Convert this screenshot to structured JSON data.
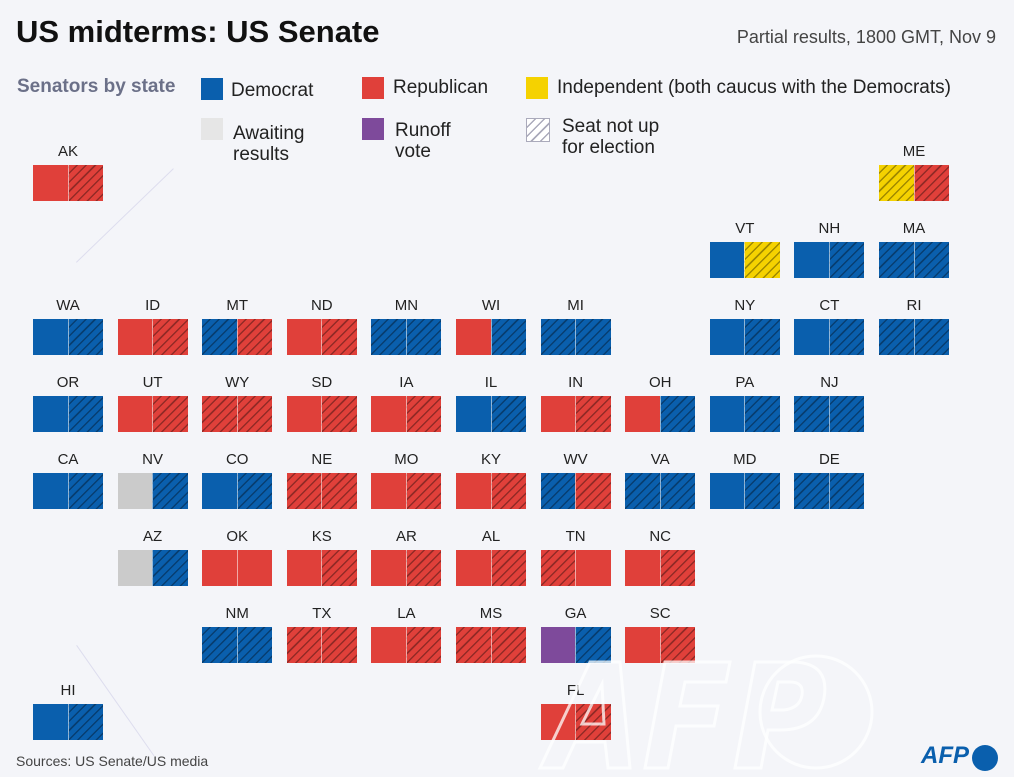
{
  "title": "US midterms: US Senate",
  "subtitle": "Partial results, 1800 GMT, Nov 9",
  "legend": {
    "heading": "Senators by state",
    "democrat": "Democrat",
    "republican": "Republican",
    "independent": "Independent (both caucus with the Democrats)",
    "awaiting": "Awaiting results",
    "runoff": "Runoff vote",
    "not_up": "Seat not up for election"
  },
  "colors": {
    "D": "#0a5fad",
    "R": "#e0403a",
    "I": "#f5d200",
    "A": "#cbcbcb",
    "U": "#7e4a9b"
  },
  "seat_codes_note": "h = seat not up for election",
  "states": [
    {
      "abbr": "AK",
      "seats": [
        "R",
        "Rh"
      ]
    },
    {
      "abbr": "ME",
      "seats": [
        "Ih",
        "Rh"
      ]
    },
    {
      "abbr": "VT",
      "seats": [
        "D",
        "Ih"
      ]
    },
    {
      "abbr": "NH",
      "seats": [
        "D",
        "Dh"
      ]
    },
    {
      "abbr": "MA",
      "seats": [
        "Dh",
        "Dh"
      ]
    },
    {
      "abbr": "WA",
      "seats": [
        "D",
        "Dh"
      ]
    },
    {
      "abbr": "ID",
      "seats": [
        "R",
        "Rh"
      ]
    },
    {
      "abbr": "MT",
      "seats": [
        "Dh",
        "Rh"
      ]
    },
    {
      "abbr": "ND",
      "seats": [
        "R",
        "Rh"
      ]
    },
    {
      "abbr": "MN",
      "seats": [
        "Dh",
        "Dh"
      ]
    },
    {
      "abbr": "WI",
      "seats": [
        "R",
        "Dh"
      ]
    },
    {
      "abbr": "MI",
      "seats": [
        "Dh",
        "Dh"
      ]
    },
    {
      "abbr": "NY",
      "seats": [
        "D",
        "Dh"
      ]
    },
    {
      "abbr": "CT",
      "seats": [
        "D",
        "Dh"
      ]
    },
    {
      "abbr": "RI",
      "seats": [
        "Dh",
        "Dh"
      ]
    },
    {
      "abbr": "OR",
      "seats": [
        "D",
        "Dh"
      ]
    },
    {
      "abbr": "UT",
      "seats": [
        "R",
        "Rh"
      ]
    },
    {
      "abbr": "WY",
      "seats": [
        "Rh",
        "Rh"
      ]
    },
    {
      "abbr": "SD",
      "seats": [
        "R",
        "Rh"
      ]
    },
    {
      "abbr": "IA",
      "seats": [
        "R",
        "Rh"
      ]
    },
    {
      "abbr": "IL",
      "seats": [
        "D",
        "Dh"
      ]
    },
    {
      "abbr": "IN",
      "seats": [
        "R",
        "Rh"
      ]
    },
    {
      "abbr": "OH",
      "seats": [
        "R",
        "Dh"
      ]
    },
    {
      "abbr": "PA",
      "seats": [
        "D",
        "Dh"
      ]
    },
    {
      "abbr": "NJ",
      "seats": [
        "Dh",
        "Dh"
      ]
    },
    {
      "abbr": "CA",
      "seats": [
        "D",
        "Dh"
      ]
    },
    {
      "abbr": "NV",
      "seats": [
        "A",
        "Dh"
      ]
    },
    {
      "abbr": "CO",
      "seats": [
        "D",
        "Dh"
      ]
    },
    {
      "abbr": "NE",
      "seats": [
        "Rh",
        "Rh"
      ]
    },
    {
      "abbr": "MO",
      "seats": [
        "R",
        "Rh"
      ]
    },
    {
      "abbr": "KY",
      "seats": [
        "R",
        "Rh"
      ]
    },
    {
      "abbr": "WV",
      "seats": [
        "Dh",
        "Rh"
      ]
    },
    {
      "abbr": "VA",
      "seats": [
        "Dh",
        "Dh"
      ]
    },
    {
      "abbr": "MD",
      "seats": [
        "D",
        "Dh"
      ]
    },
    {
      "abbr": "DE",
      "seats": [
        "Dh",
        "Dh"
      ]
    },
    {
      "abbr": "AZ",
      "seats": [
        "A",
        "Dh"
      ]
    },
    {
      "abbr": "OK",
      "seats": [
        "R",
        "R"
      ]
    },
    {
      "abbr": "KS",
      "seats": [
        "R",
        "Rh"
      ]
    },
    {
      "abbr": "AR",
      "seats": [
        "R",
        "Rh"
      ]
    },
    {
      "abbr": "AL",
      "seats": [
        "R",
        "Rh"
      ]
    },
    {
      "abbr": "TN",
      "seats": [
        "Rh",
        "R"
      ]
    },
    {
      "abbr": "NC",
      "seats": [
        "R",
        "Rh"
      ]
    },
    {
      "abbr": "NM",
      "seats": [
        "Dh",
        "Dh"
      ]
    },
    {
      "abbr": "TX",
      "seats": [
        "Rh",
        "Rh"
      ]
    },
    {
      "abbr": "LA",
      "seats": [
        "R",
        "Rh"
      ]
    },
    {
      "abbr": "MS",
      "seats": [
        "Rh",
        "Rh"
      ]
    },
    {
      "abbr": "GA",
      "seats": [
        "U",
        "Dh"
      ]
    },
    {
      "abbr": "SC",
      "seats": [
        "R",
        "Rh"
      ]
    },
    {
      "abbr": "HI",
      "seats": [
        "D",
        "Dh"
      ]
    },
    {
      "abbr": "FL",
      "seats": [
        "R",
        "Rh"
      ]
    }
  ],
  "source": "Sources: US Senate/US media",
  "watermark": "AFP",
  "logo": "AFP"
}
